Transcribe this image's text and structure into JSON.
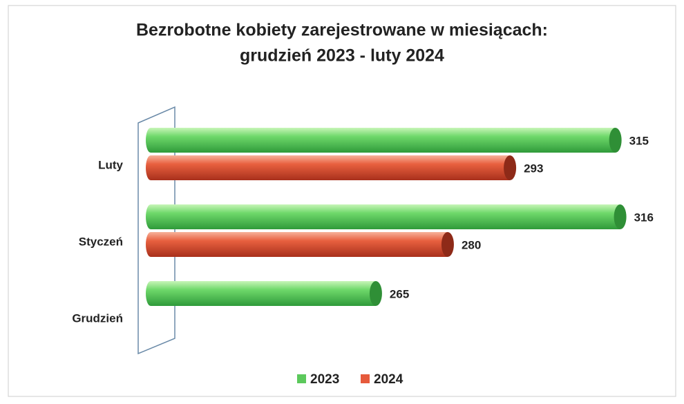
{
  "chart_data": {
    "type": "bar",
    "orientation": "horizontal",
    "title": [
      "Bezrobotne kobiety zarejestrowane w miesiącach:",
      "grudzień 2023 - luty 2024"
    ],
    "categories": [
      "Luty",
      "Styczeń",
      "Grudzień"
    ],
    "series": [
      {
        "name": "2023",
        "color": "#5cc95c",
        "values": [
          315,
          316,
          265
        ]
      },
      {
        "name": "2024",
        "color": "#e65a3c",
        "values": [
          293,
          280,
          null
        ]
      }
    ],
    "xlim": [
      218,
      325
    ],
    "legend": "bottom"
  }
}
